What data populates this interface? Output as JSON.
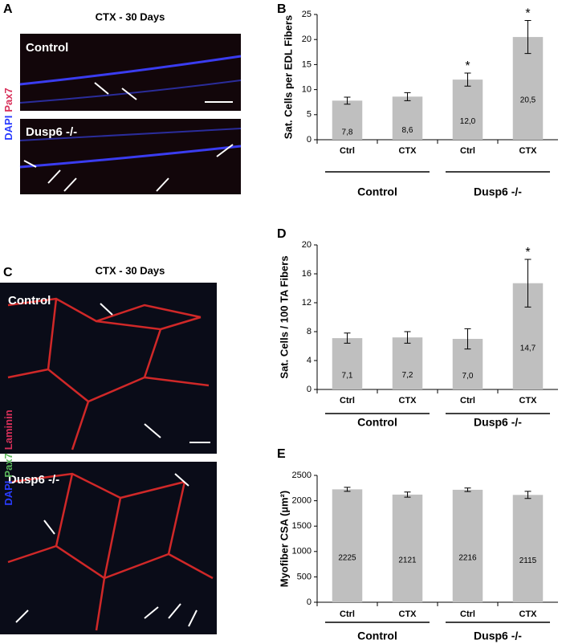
{
  "images": [
    {
      "panel": "A",
      "title": "CTX - 30 Days",
      "fields": [
        "Control",
        "Dusp6 -/-"
      ],
      "stain_labels": [
        {
          "text": "DAPI",
          "color": "#2a3cff"
        },
        {
          "text": "Pax7",
          "color": "#d8305a"
        }
      ]
    },
    {
      "panel": "C",
      "title": "CTX - 30 Days",
      "fields": [
        "Control",
        "Dusp6 -/-"
      ],
      "stain_labels": [
        {
          "text": "DAPI",
          "color": "#2a3cff"
        },
        {
          "text": "Pax7",
          "color": "#5cb85c"
        },
        {
          "text": "Laminin",
          "color": "#d8305a"
        }
      ]
    }
  ],
  "chart_data": [
    {
      "type": "bar",
      "panel": "B",
      "ylabel": "Sat. Cells per EDL Fibers",
      "categories": [
        "Ctrl",
        "CTX",
        "Ctrl",
        "CTX"
      ],
      "values": [
        7.8,
        8.6,
        12.0,
        20.5
      ],
      "value_labels": [
        "7,8",
        "8,6",
        "12,0",
        "20,5"
      ],
      "errors": [
        0.7,
        0.8,
        1.3,
        3.3
      ],
      "significance": [
        null,
        null,
        "*",
        "*"
      ],
      "groups": [
        "Control",
        "Dusp6 -/-"
      ],
      "ylim": [
        0,
        25
      ],
      "yticks": [
        0,
        5,
        10,
        15,
        20,
        25
      ],
      "color": "#bfbfbf"
    },
    {
      "type": "bar",
      "panel": "D",
      "ylabel": "Sat. Cells / 100 TA Fibers",
      "categories": [
        "Ctrl",
        "CTX",
        "Ctrl",
        "CTX"
      ],
      "values": [
        7.1,
        7.2,
        7.0,
        14.7
      ],
      "value_labels": [
        "7,1",
        "7,2",
        "7,0",
        "14,7"
      ],
      "errors": [
        0.7,
        0.8,
        1.4,
        3.3
      ],
      "significance": [
        null,
        null,
        null,
        "*"
      ],
      "groups": [
        "Control",
        "Dusp6 -/-"
      ],
      "ylim": [
        0,
        20
      ],
      "yticks": [
        0,
        4,
        8,
        12,
        16,
        20
      ],
      "color": "#bfbfbf"
    },
    {
      "type": "bar",
      "panel": "E",
      "ylabel": "Myofiber CSA (µm²)",
      "categories": [
        "Ctrl",
        "CTX",
        "Ctrl",
        "CTX"
      ],
      "values": [
        2225,
        2121,
        2216,
        2115
      ],
      "errors": [
        40,
        50,
        35,
        70
      ],
      "groups": [
        "Control",
        "Dusp6 -/-"
      ],
      "ylim": [
        0,
        2500
      ],
      "yticks": [
        0,
        500,
        1000,
        1500,
        2000,
        2500
      ],
      "color": "#bfbfbf"
    }
  ]
}
